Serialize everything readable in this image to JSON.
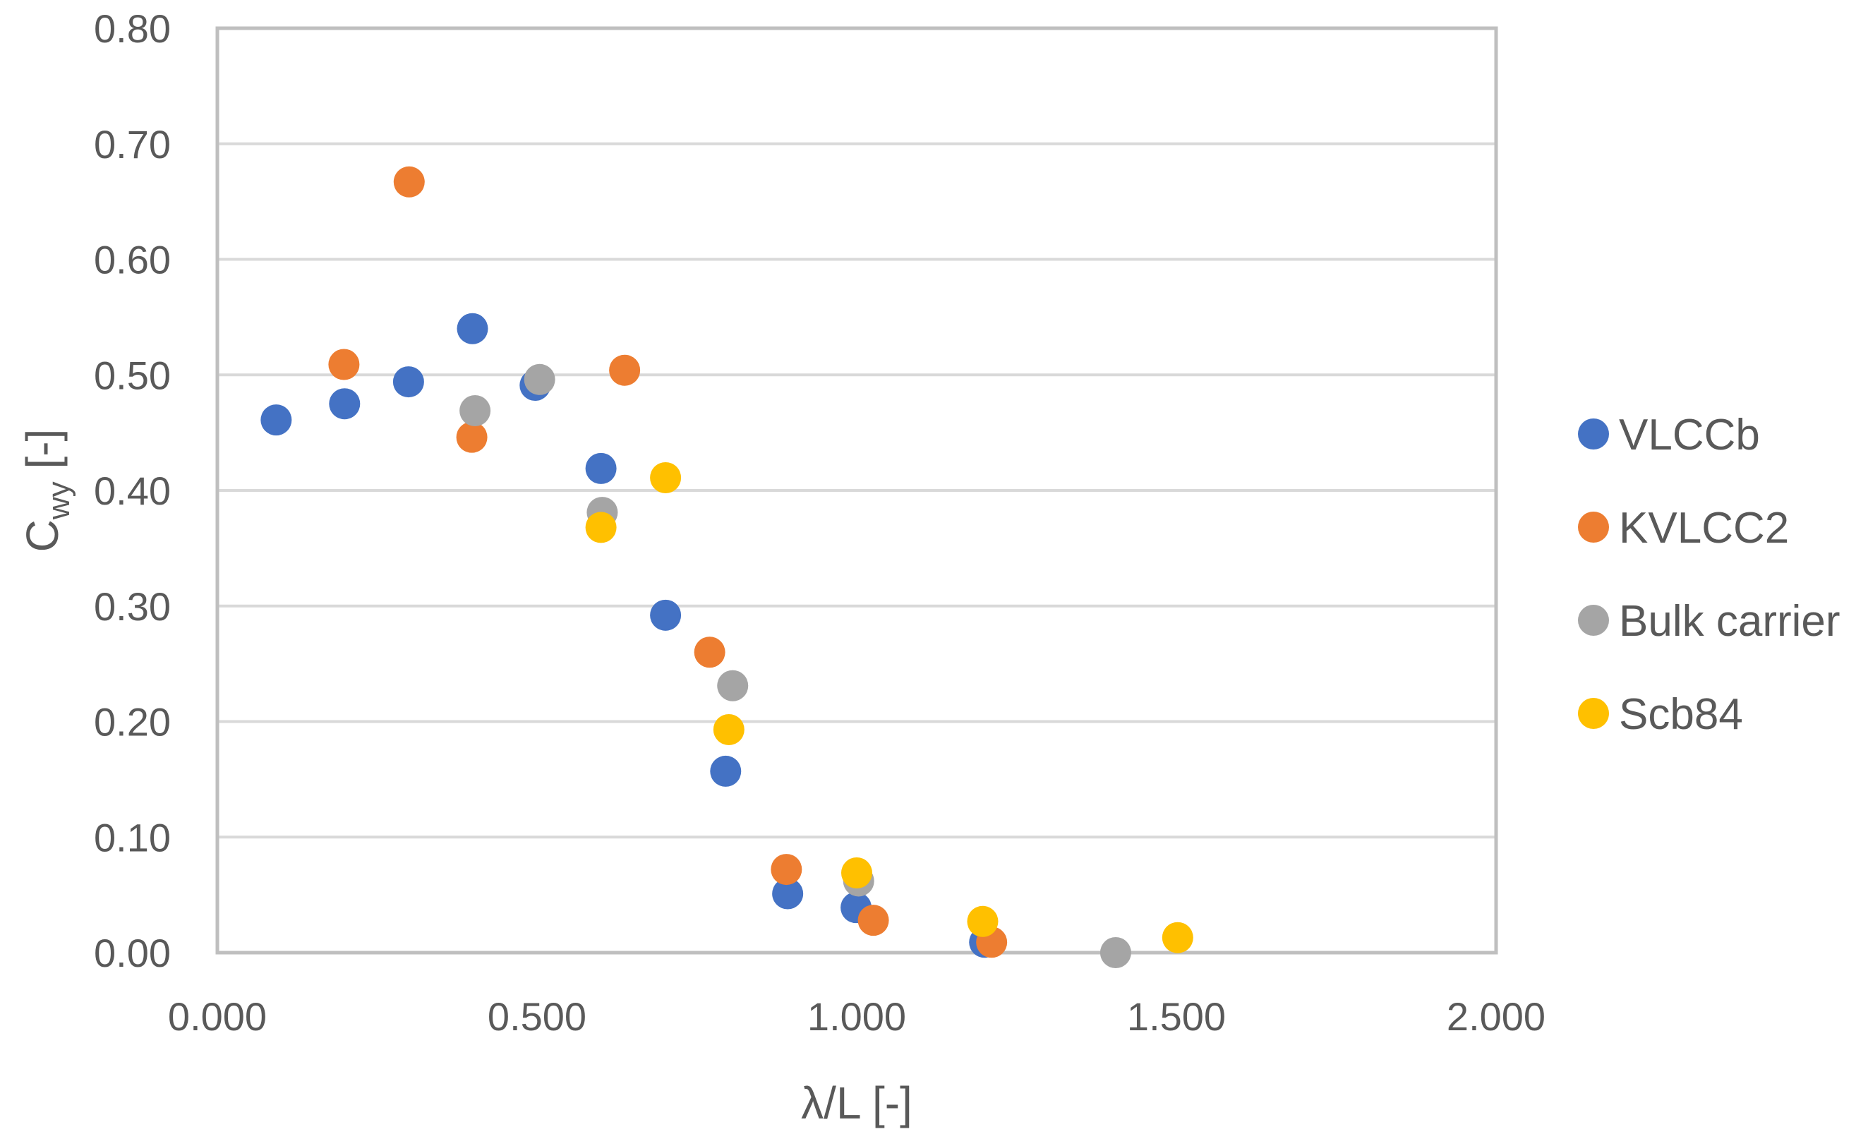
{
  "chart_data": {
    "type": "scatter",
    "title": "",
    "xlabel": "λ/L [-]",
    "ylabel_main": "C",
    "ylabel_sub": "wy",
    "ylabel_suffix": " [-]",
    "xlim": [
      0,
      2
    ],
    "ylim": [
      0,
      0.8
    ],
    "x_ticks": [
      0,
      0.5,
      1.0,
      1.5,
      2.0
    ],
    "x_tick_labels": [
      "0.000",
      "0.500",
      "1.000",
      "1.500",
      "2.000"
    ],
    "y_ticks": [
      0,
      0.1,
      0.2,
      0.3,
      0.4,
      0.5,
      0.6,
      0.7,
      0.8
    ],
    "y_tick_labels": [
      "0.00",
      "0.10",
      "0.20",
      "0.30",
      "0.40",
      "0.50",
      "0.60",
      "0.70",
      "0.80"
    ],
    "grid": "horizontal",
    "legend_position": "right",
    "series": [
      {
        "name": "VLCCb",
        "color": "#4472C4",
        "points": [
          [
            0.092,
            0.461
          ],
          [
            0.199,
            0.475
          ],
          [
            0.299,
            0.494
          ],
          [
            0.399,
            0.54
          ],
          [
            0.497,
            0.491
          ],
          [
            0.6,
            0.419
          ],
          [
            0.701,
            0.292
          ],
          [
            0.795,
            0.157
          ],
          [
            0.892,
            0.051
          ],
          [
            0.999,
            0.039
          ],
          [
            1.2,
            0.009
          ]
        ]
      },
      {
        "name": "KVLCC2",
        "color": "#ED7D31",
        "points": [
          [
            0.198,
            0.509
          ],
          [
            0.3,
            0.667
          ],
          [
            0.398,
            0.446
          ],
          [
            0.637,
            0.504
          ],
          [
            0.77,
            0.26
          ],
          [
            0.89,
            0.072
          ],
          [
            1.026,
            0.028
          ],
          [
            1.211,
            0.009
          ]
        ]
      },
      {
        "name": "Bulk carrier",
        "color": "#A5A5A5",
        "points": [
          [
            0.403,
            0.469
          ],
          [
            0.504,
            0.496
          ],
          [
            0.602,
            0.381
          ],
          [
            0.806,
            0.231
          ],
          [
            1.003,
            0.062
          ],
          [
            1.405,
            0.0
          ]
        ]
      },
      {
        "name": "Scb84",
        "color": "#FFC000",
        "points": [
          [
            0.701,
            0.411
          ],
          [
            0.6,
            0.368
          ],
          [
            0.8,
            0.193
          ],
          [
            1.0,
            0.069
          ],
          [
            1.197,
            0.027
          ],
          [
            1.502,
            0.013
          ]
        ]
      }
    ]
  }
}
